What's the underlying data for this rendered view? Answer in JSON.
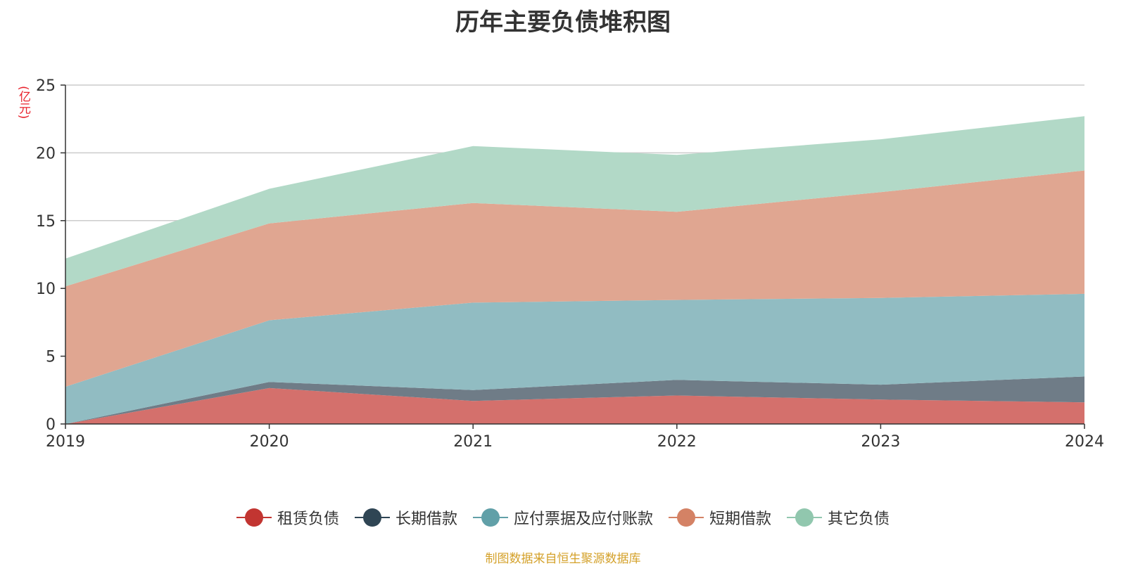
{
  "chart_data": {
    "type": "area",
    "stacked": true,
    "title": "历年主要负债堆积图",
    "ylabel": "(亿元)",
    "x": [
      "2019",
      "2020",
      "2021",
      "2022",
      "2023",
      "2024"
    ],
    "ylim": [
      0,
      25
    ],
    "yticks": [
      0,
      5,
      10,
      15,
      20,
      25
    ],
    "grid": true,
    "legend_position": "bottom",
    "series": [
      {
        "name": "租赁负债",
        "color": "#c23531",
        "fill": "#d4706c",
        "values": [
          0,
          2.65,
          1.7,
          2.1,
          1.8,
          1.6
        ]
      },
      {
        "name": "长期借款",
        "color": "#2f4554",
        "fill": "#6f7c87",
        "values": [
          0,
          0.45,
          0.8,
          1.15,
          1.1,
          1.9
        ]
      },
      {
        "name": "应付票据及应付账款",
        "color": "#61a0a8",
        "fill": "#91bcc2",
        "values": [
          2.75,
          4.55,
          6.45,
          5.9,
          6.4,
          6.1
        ]
      },
      {
        "name": "短期借款",
        "color": "#d48265",
        "fill": "#e0a691",
        "values": [
          7.4,
          7.15,
          7.35,
          6.5,
          7.8,
          9.1
        ]
      },
      {
        "name": "其它负债",
        "color": "#91c7ae",
        "fill": "#b2d9c7",
        "values": [
          2.05,
          2.55,
          4.2,
          4.2,
          3.9,
          4.0
        ]
      }
    ]
  },
  "source": "制图数据来自恒生聚源数据库"
}
